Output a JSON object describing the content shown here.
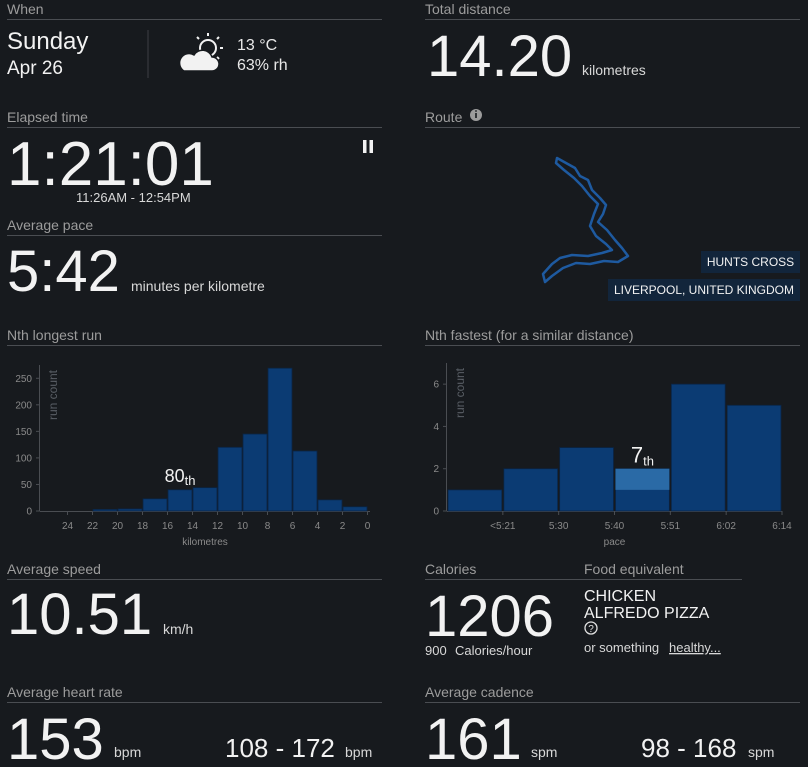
{
  "when": {
    "label": "When",
    "day": "Sunday",
    "date": "Apr 26",
    "temperature": "13 °C",
    "humidity": "63% rh"
  },
  "total_distance": {
    "label": "Total distance",
    "value": "14.20",
    "unit": "kilometres"
  },
  "elapsed_time": {
    "label": "Elapsed time",
    "value": "1:21:01",
    "range": "11:26AM - 12:54PM"
  },
  "average_pace": {
    "label": "Average pace",
    "value": "5:42",
    "unit": "minutes per kilometre"
  },
  "route": {
    "label": "Route",
    "area": "HUNTS CROSS",
    "city": "LIVERPOOL, UNITED KINGDOM"
  },
  "average_speed": {
    "label": "Average speed",
    "value": "10.51",
    "unit": "km/h"
  },
  "calories": {
    "label": "Calories",
    "value": "1206",
    "rate": "900",
    "rate_unit": "Calories/hour"
  },
  "food_equivalent": {
    "label": "Food equivalent",
    "lines": [
      "CHICKEN",
      "ALFREDO PIZZA"
    ],
    "alternative": "or something",
    "alternative_link": "healthy..."
  },
  "average_heart_rate": {
    "label": "Average heart rate",
    "value": "153",
    "unit": "bpm",
    "range": "108 - 172",
    "range_unit": "bpm"
  },
  "average_cadence": {
    "label": "Average cadence",
    "value": "161",
    "unit": "spm",
    "range": "98 - 168",
    "range_unit": "spm"
  },
  "chart_data": [
    {
      "type": "histogram",
      "title": "Nth longest run",
      "bins": [
        24,
        22,
        20,
        18,
        16,
        14,
        12,
        10,
        8,
        6,
        4,
        2,
        0
      ],
      "values": [
        0,
        3,
        4,
        23,
        40,
        44,
        120,
        145,
        269,
        113,
        21,
        8
      ],
      "xlim": [
        26.2,
        -0.2
      ],
      "ylim": [
        0,
        275
      ],
      "xticks": [
        24,
        22,
        20,
        18,
        16,
        14,
        12,
        10,
        8,
        6,
        4,
        2,
        0
      ],
      "yticks": [
        0,
        50,
        100,
        150,
        200,
        250
      ],
      "xlabel": "kilometres",
      "ylabel": "run count",
      "color": "#0b3b73",
      "highlight": {
        "index": 4,
        "rank": "80",
        "suffix": "th"
      }
    },
    {
      "type": "bar",
      "title": "Nth fastest (for a similar distance)",
      "categories": [
        "<5:21",
        "5:30",
        "5:40",
        "5:51",
        "6:02",
        "6:14"
      ],
      "values": [
        1,
        2,
        3,
        2,
        6,
        5
      ],
      "ylim": [
        0,
        7
      ],
      "yticks": [
        0,
        2,
        4,
        6
      ],
      "xlabel": "pace",
      "ylabel": "run count",
      "color": "#0b3b73",
      "highlight": {
        "index": 3,
        "value": 1,
        "color": "#2a6aa6",
        "rank": "7",
        "suffix": "th"
      }
    }
  ]
}
